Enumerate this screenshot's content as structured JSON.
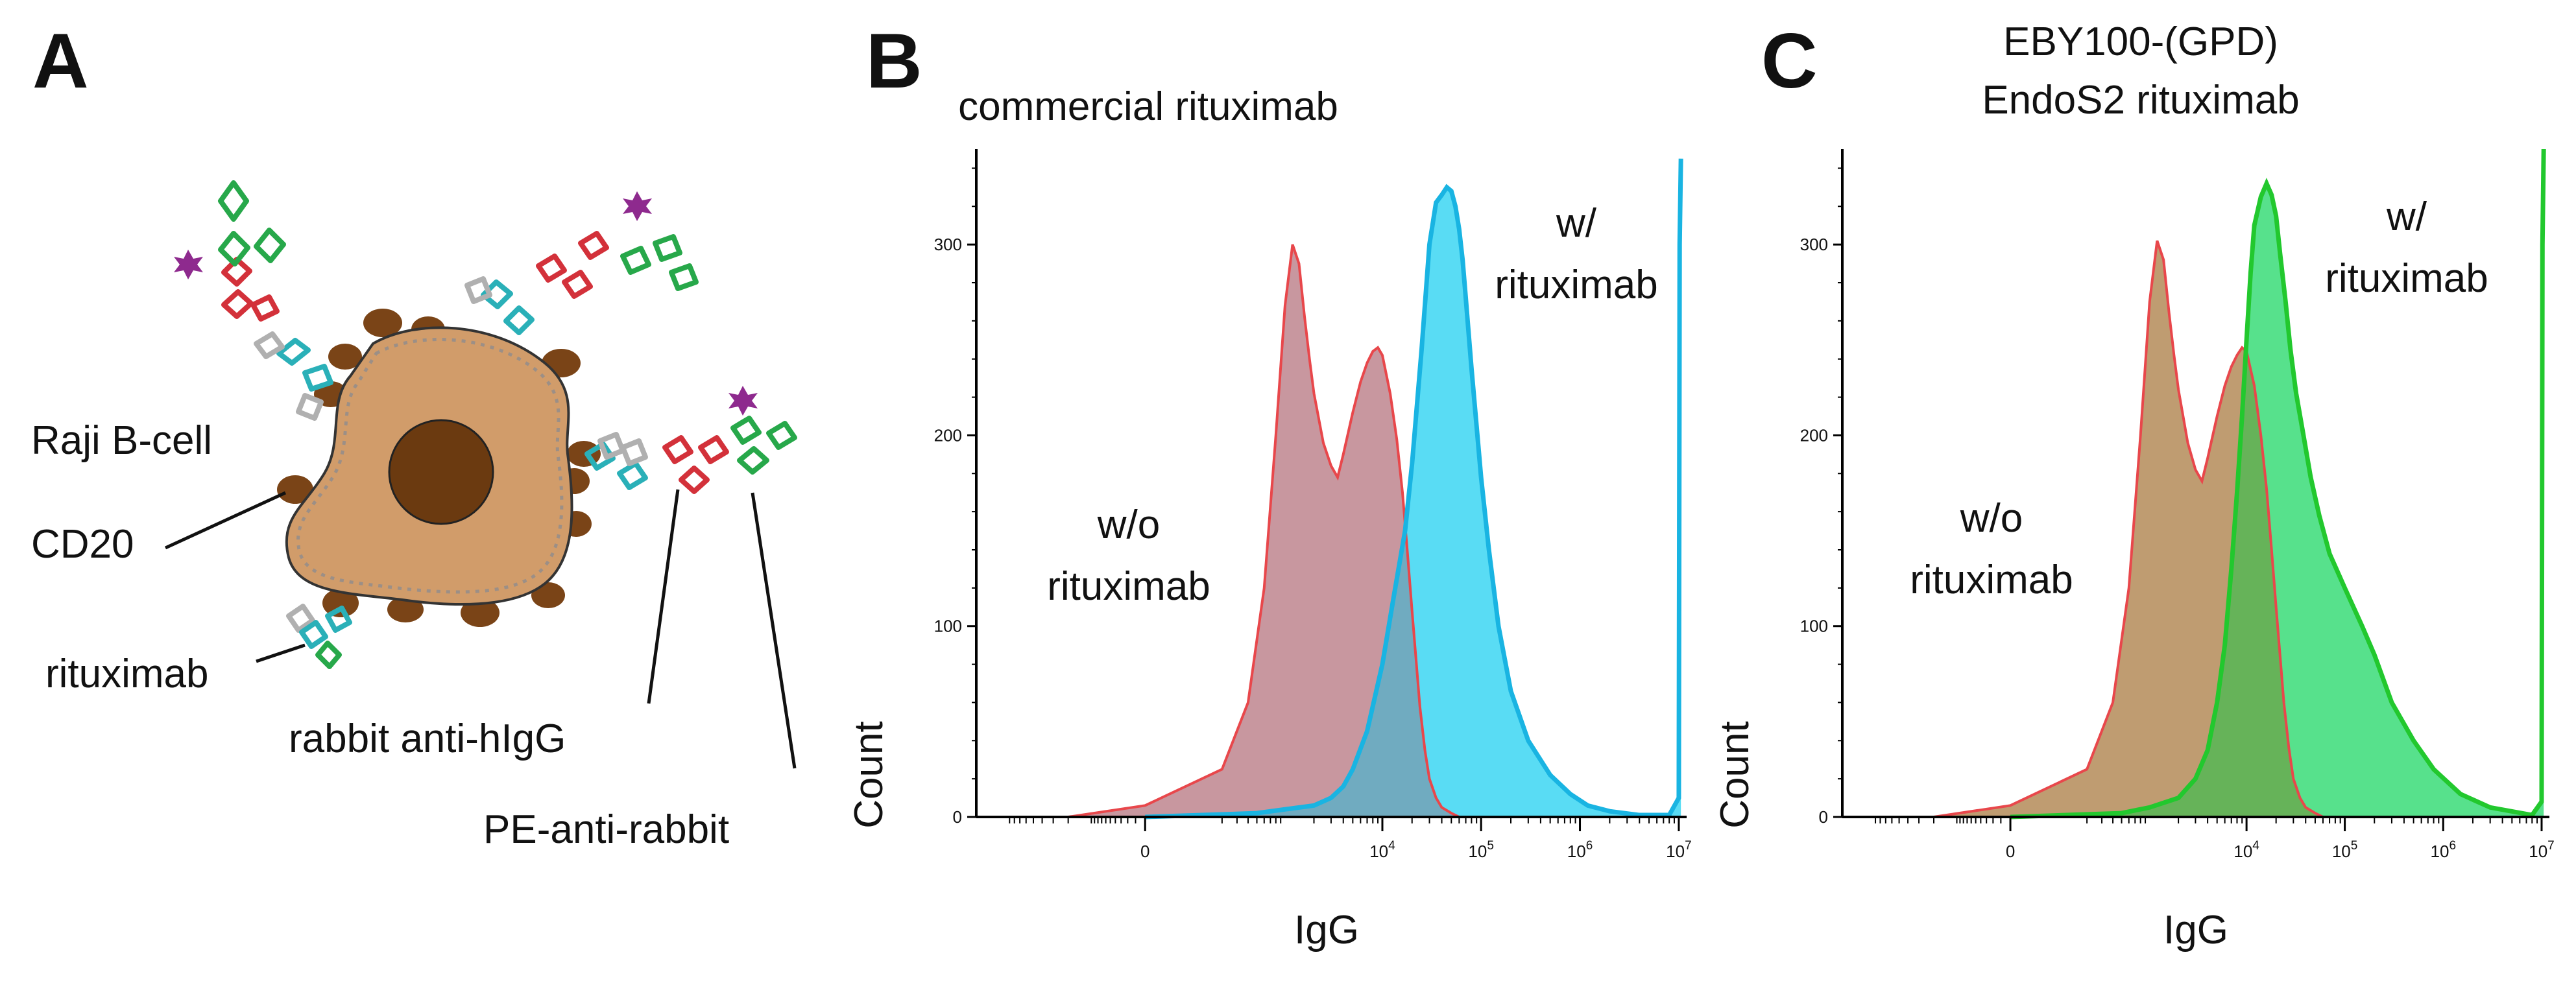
{
  "panels": {
    "A": {
      "letter": "A",
      "labels": {
        "cell": "Raji B-cell",
        "cd20": "CD20",
        "rituximab": "rituximab",
        "rabbit": "rabbit anti-hIgG",
        "pe": "PE-anti-rabbit"
      },
      "colors": {
        "cell_body": "#D19C6A",
        "nucleus": "#6B3A10",
        "cd20": "#7A4417",
        "heavy_light_teal": "#2AB0B8",
        "rabbit_red": "#D3313A",
        "pe_green": "#27A84A",
        "pe_star": "#8E2A8E"
      }
    },
    "B": {
      "letter": "B"
    },
    "C": {
      "letter": "C"
    }
  },
  "chart_data": [
    {
      "type": "area",
      "panel": "B",
      "title": "commercial rituximab",
      "xlabel": "IgG",
      "ylabel": "Count",
      "ylim": [
        0,
        350
      ],
      "yticks": [
        0,
        100,
        200,
        300
      ],
      "xlim": [
        -2000,
        12000000
      ],
      "xscale": "logicle",
      "xticks": [
        {
          "value": 0,
          "label": "0"
        },
        {
          "value": 10000,
          "base": "10",
          "exp": "4"
        },
        {
          "value": 100000,
          "base": "10",
          "exp": "5"
        },
        {
          "value": 1000000,
          "base": "10",
          "exp": "6"
        },
        {
          "value": 10000000,
          "base": "10",
          "exp": "7"
        }
      ],
      "series": [
        {
          "name": "w/o rituximab",
          "label_lines": [
            "w/o",
            "rituximab"
          ],
          "fill": "#F58A8A",
          "stroke": "#E8474B",
          "x": [
            -200,
            0,
            200,
            400,
            600,
            800,
            1000,
            1200,
            1400,
            1600,
            1800,
            2000,
            2500,
            3000,
            3500,
            4000,
            5000,
            6000,
            7000,
            8000,
            9000,
            10000,
            12000,
            14000,
            16000,
            18000,
            20000,
            22000,
            24000,
            27000,
            30000,
            35000,
            40000,
            50000,
            60000
          ],
          "values": [
            0,
            6,
            25,
            60,
            120,
            200,
            268,
            300,
            290,
            262,
            240,
            222,
            196,
            184,
            178,
            190,
            212,
            228,
            238,
            244,
            246,
            242,
            222,
            198,
            170,
            138,
            108,
            82,
            58,
            35,
            20,
            10,
            5,
            2,
            0
          ]
        },
        {
          "name": "w/ rituximab",
          "label_lines": [
            "w/",
            "rituximab"
          ],
          "fill": "#3CD6F2",
          "stroke": "#19B4E2",
          "x": [
            0,
            500,
            1000,
            2000,
            3000,
            4000,
            5000,
            7000,
            10000,
            13000,
            17000,
            20000,
            25000,
            30000,
            35000,
            40000,
            45000,
            50000,
            55000,
            60000,
            65000,
            70000,
            80000,
            90000,
            100000,
            120000,
            150000,
            200000,
            300000,
            500000,
            800000,
            1200000,
            2000000,
            4000000,
            8000000,
            10000000,
            10200000,
            10500000
          ],
          "values": [
            0,
            2,
            4,
            6,
            10,
            16,
            25,
            45,
            80,
            115,
            150,
            185,
            245,
            300,
            322,
            326,
            330,
            328,
            320,
            308,
            292,
            272,
            235,
            205,
            178,
            140,
            100,
            66,
            40,
            22,
            12,
            6,
            3,
            1,
            1,
            10,
            300,
            345
          ]
        }
      ]
    },
    {
      "type": "area",
      "panel": "C",
      "title_lines": [
        "EBY100-(GPD)",
        "EndoS2 rituximab"
      ],
      "xlabel": "IgG",
      "ylabel": "Count",
      "ylim": [
        0,
        350
      ],
      "yticks": [
        0,
        100,
        200,
        300
      ],
      "xlim": [
        -2000,
        12000000
      ],
      "xscale": "logicle",
      "xticks": [
        {
          "value": 0,
          "label": "0"
        },
        {
          "value": 10000,
          "base": "10",
          "exp": "4"
        },
        {
          "value": 100000,
          "base": "10",
          "exp": "5"
        },
        {
          "value": 1000000,
          "base": "10",
          "exp": "6"
        },
        {
          "value": 10000000,
          "base": "10",
          "exp": "7"
        }
      ],
      "series": [
        {
          "name": "w/o rituximab",
          "label_lines": [
            "w/o",
            "rituximab"
          ],
          "fill": "#F58A8A",
          "stroke": "#E8474B",
          "x": [
            -200,
            0,
            200,
            400,
            600,
            800,
            1000,
            1200,
            1400,
            1600,
            1800,
            2000,
            2500,
            3000,
            3500,
            4000,
            5000,
            6000,
            7000,
            8000,
            9000,
            10000,
            12000,
            14000,
            16000,
            18000,
            20000,
            22000,
            24000,
            27000,
            30000,
            35000,
            40000,
            50000,
            60000
          ],
          "values": [
            0,
            6,
            25,
            60,
            120,
            200,
            270,
            302,
            292,
            264,
            242,
            224,
            196,
            182,
            176,
            188,
            210,
            226,
            236,
            242,
            246,
            244,
            226,
            200,
            172,
            140,
            110,
            84,
            60,
            36,
            20,
            10,
            5,
            2,
            0
          ]
        },
        {
          "name": "w/ rituximab",
          "label_lines": [
            "w/",
            "rituximab"
          ],
          "fill": "#39DC78",
          "stroke": "#22C82E",
          "x": [
            0,
            500,
            1000,
            2000,
            3000,
            4000,
            5000,
            6000,
            7000,
            8000,
            9000,
            10000,
            11000,
            12000,
            14000,
            16000,
            18000,
            20000,
            22000,
            25000,
            28000,
            32000,
            38000,
            45000,
            55000,
            70000,
            100000,
            150000,
            200000,
            300000,
            500000,
            800000,
            1500000,
            3000000,
            8000000,
            10000000,
            10200000,
            10500000
          ],
          "values": [
            0,
            2,
            5,
            10,
            20,
            35,
            60,
            90,
            130,
            170,
            210,
            250,
            285,
            310,
            325,
            332,
            326,
            315,
            295,
            270,
            245,
            222,
            200,
            178,
            158,
            138,
            120,
            100,
            85,
            60,
            40,
            25,
            12,
            5,
            1,
            8,
            300,
            350
          ]
        }
      ]
    }
  ]
}
